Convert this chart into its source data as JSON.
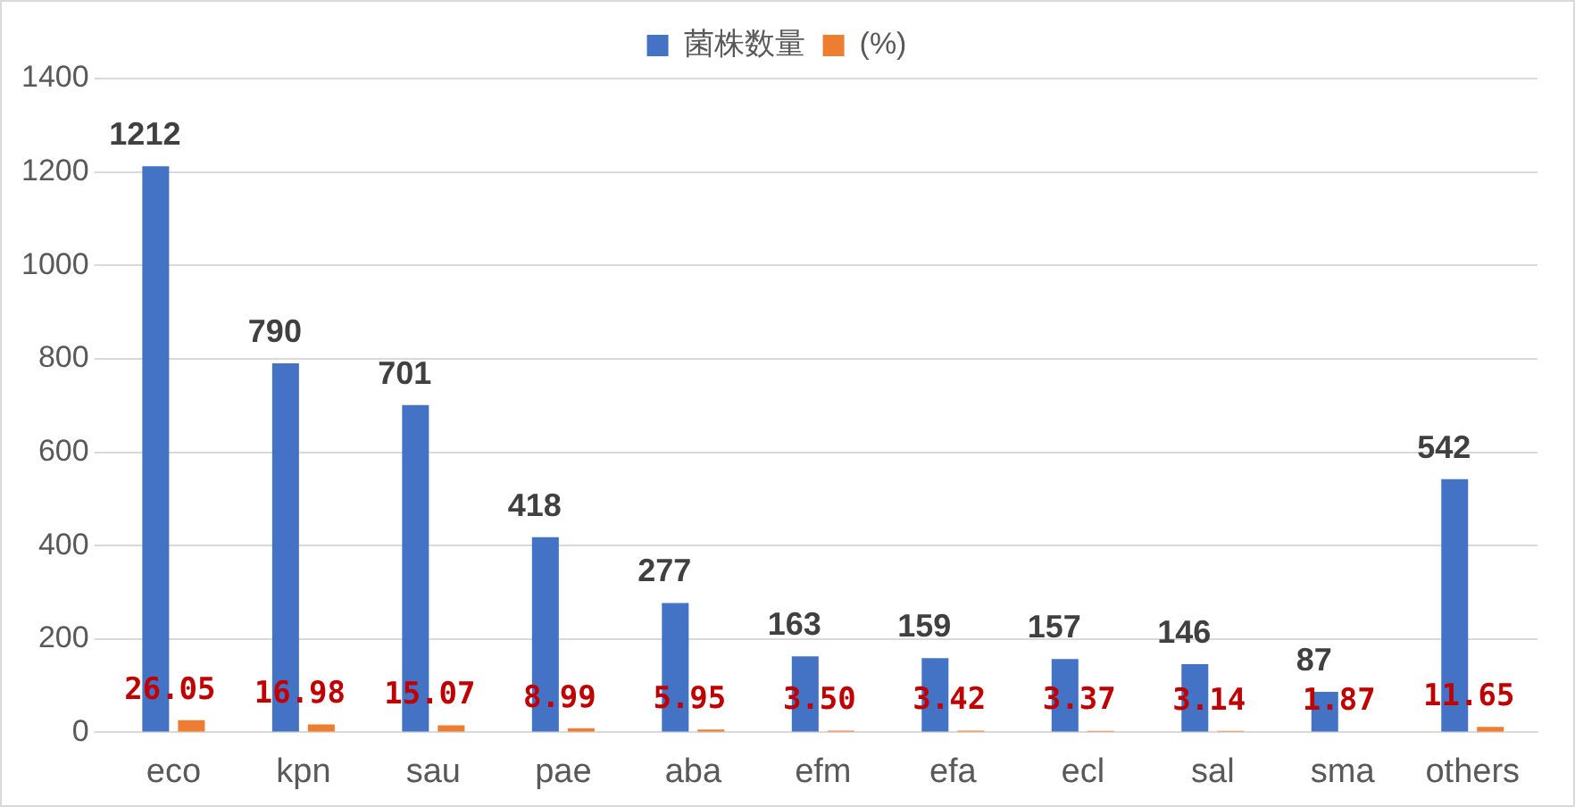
{
  "chart_data": {
    "type": "bar",
    "categories": [
      "eco",
      "kpn",
      "sau",
      "pae",
      "aba",
      "efm",
      "efa",
      "ecl",
      "sal",
      "sma",
      "others"
    ],
    "series": [
      {
        "name": "菌株数量",
        "color": "#4472c4",
        "values": [
          1212,
          790,
          701,
          418,
          277,
          163,
          159,
          157,
          146,
          87,
          542
        ],
        "value_labels": [
          "1212",
          "790",
          "701",
          "418",
          "277",
          "163",
          "159",
          "157",
          "146",
          "87",
          "542"
        ]
      },
      {
        "name": "(%)",
        "color": "#ed7d31",
        "values": [
          26.05,
          16.98,
          15.07,
          8.99,
          5.95,
          3.5,
          3.42,
          3.37,
          3.14,
          1.87,
          11.65
        ],
        "value_labels": [
          "26.05",
          "16.98",
          "15.07",
          "8.99",
          "5.95",
          "3.50",
          "3.42",
          "3.37",
          "3.14",
          "1.87",
          "11.65"
        ]
      }
    ],
    "ylim": [
      0,
      1400
    ],
    "yticks": [
      0,
      200,
      400,
      600,
      800,
      1000,
      1200,
      1400
    ],
    "grid": "y",
    "legend": "top"
  }
}
